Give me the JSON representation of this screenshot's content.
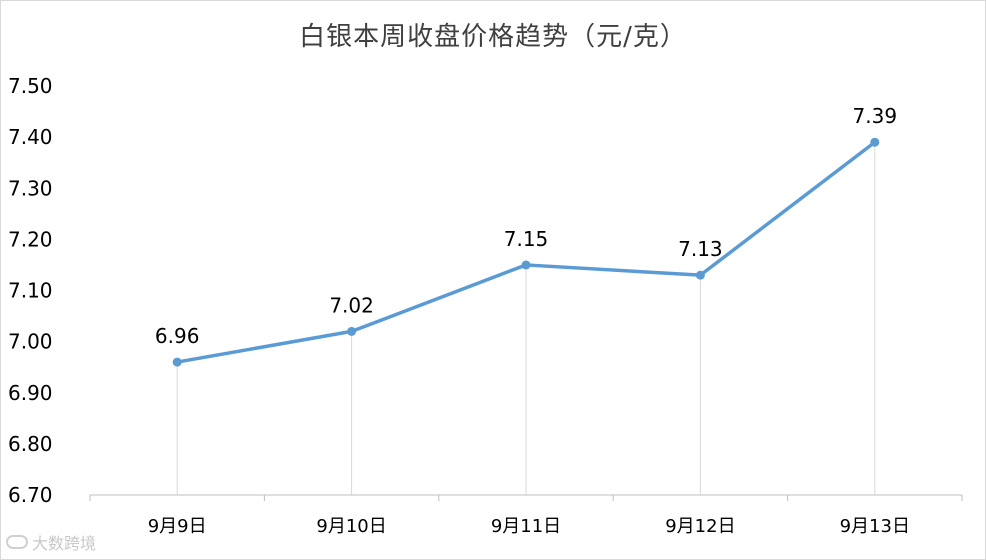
{
  "chart_data": {
    "type": "line",
    "title": "白银本周收盘价格趋势（元/克）",
    "categories": [
      "9月9日",
      "9月10日",
      "9月11日",
      "9月12日",
      "9月13日"
    ],
    "series": [
      {
        "values": [
          6.96,
          7.02,
          7.15,
          7.13,
          7.39
        ],
        "color": "#5b9bd5"
      }
    ],
    "data_labels": [
      "6.96",
      "7.02",
      "7.15",
      "7.13",
      "7.39"
    ],
    "ylim": [
      6.7,
      7.5
    ],
    "yticks": [
      "6.70",
      "6.80",
      "6.90",
      "7.00",
      "7.10",
      "7.20",
      "7.30",
      "7.40",
      "7.50"
    ],
    "xlabel": "",
    "ylabel": "",
    "grid": "vertical drop lines",
    "legend": "none"
  },
  "watermark": {
    "text": "大数跨境",
    "icon": "logo-icon"
  }
}
